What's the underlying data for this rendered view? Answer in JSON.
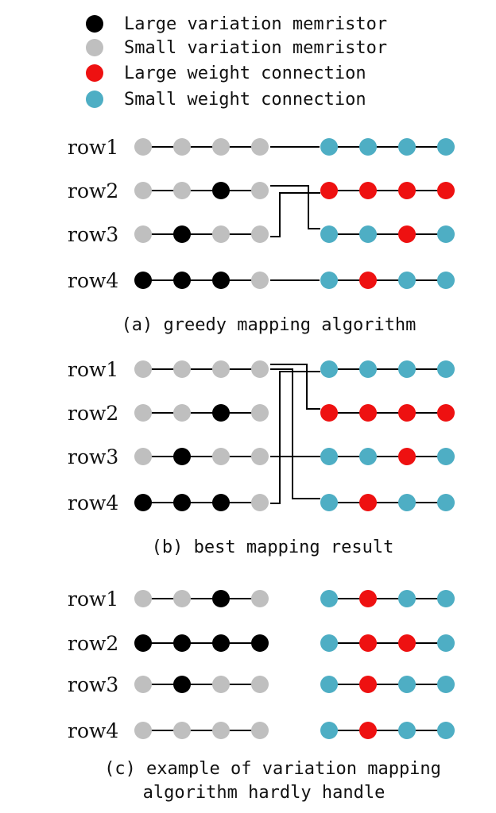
{
  "colors": {
    "large_variation": "#000000",
    "small_variation": "#bfbfbf",
    "large_weight": "#ee1111",
    "small_weight": "#4eaec4",
    "line": "#000000"
  },
  "legend": [
    {
      "label": "Large variation memristor",
      "type": "large_variation"
    },
    {
      "label": "Small variation memristor",
      "type": "small_variation"
    },
    {
      "label": "Large weight connection",
      "type": "large_weight"
    },
    {
      "label": "Small weight connection",
      "type": "small_weight"
    }
  ],
  "panels": [
    {
      "id": "a",
      "caption": [
        "(a) greedy mapping algorithm"
      ],
      "rows": [
        {
          "label": "row1",
          "left": [
            "S",
            "S",
            "S",
            "S"
          ],
          "right": [
            "s",
            "s",
            "s",
            "s"
          ]
        },
        {
          "label": "row2",
          "left": [
            "S",
            "S",
            "L",
            "S"
          ],
          "right": [
            "l",
            "l",
            "l",
            "l"
          ]
        },
        {
          "label": "row3",
          "left": [
            "S",
            "L",
            "S",
            "S"
          ],
          "right": [
            "s",
            "s",
            "l",
            "s"
          ]
        },
        {
          "label": "row4",
          "left": [
            "L",
            "L",
            "L",
            "S"
          ],
          "right": [
            "s",
            "l",
            "s",
            "s"
          ]
        }
      ],
      "mapping": [
        1,
        3,
        2,
        4
      ]
    },
    {
      "id": "b",
      "caption": [
        "(b) best mapping result"
      ],
      "rows": [
        {
          "label": "row1",
          "left": [
            "S",
            "S",
            "S",
            "S"
          ],
          "right": [
            "s",
            "s",
            "s",
            "s"
          ]
        },
        {
          "label": "row2",
          "left": [
            "S",
            "S",
            "L",
            "S"
          ],
          "right": [
            "l",
            "l",
            "l",
            "l"
          ]
        },
        {
          "label": "row3",
          "left": [
            "S",
            "L",
            "S",
            "S"
          ],
          "right": [
            "s",
            "s",
            "l",
            "s"
          ]
        },
        {
          "label": "row4",
          "left": [
            "L",
            "L",
            "L",
            "S"
          ],
          "right": [
            "s",
            "l",
            "s",
            "s"
          ]
        }
      ],
      "mapping": [
        2,
        4,
        3,
        1
      ]
    },
    {
      "id": "c",
      "caption": [
        "(c)  example of variation mapping",
        "algorithm hardly handle"
      ],
      "rows": [
        {
          "label": "row1",
          "left": [
            "S",
            "S",
            "L",
            "S"
          ],
          "right": [
            "s",
            "l",
            "s",
            "s"
          ]
        },
        {
          "label": "row2",
          "left": [
            "L",
            "L",
            "L",
            "L"
          ],
          "right": [
            "s",
            "l",
            "l",
            "s"
          ]
        },
        {
          "label": "row3",
          "left": [
            "S",
            "L",
            "S",
            "S"
          ],
          "right": [
            "s",
            "l",
            "s",
            "s"
          ]
        },
        {
          "label": "row4",
          "left": [
            "S",
            "S",
            "S",
            "S"
          ],
          "right": [
            "s",
            "l",
            "s",
            "s"
          ]
        }
      ],
      "mapping": null
    }
  ]
}
